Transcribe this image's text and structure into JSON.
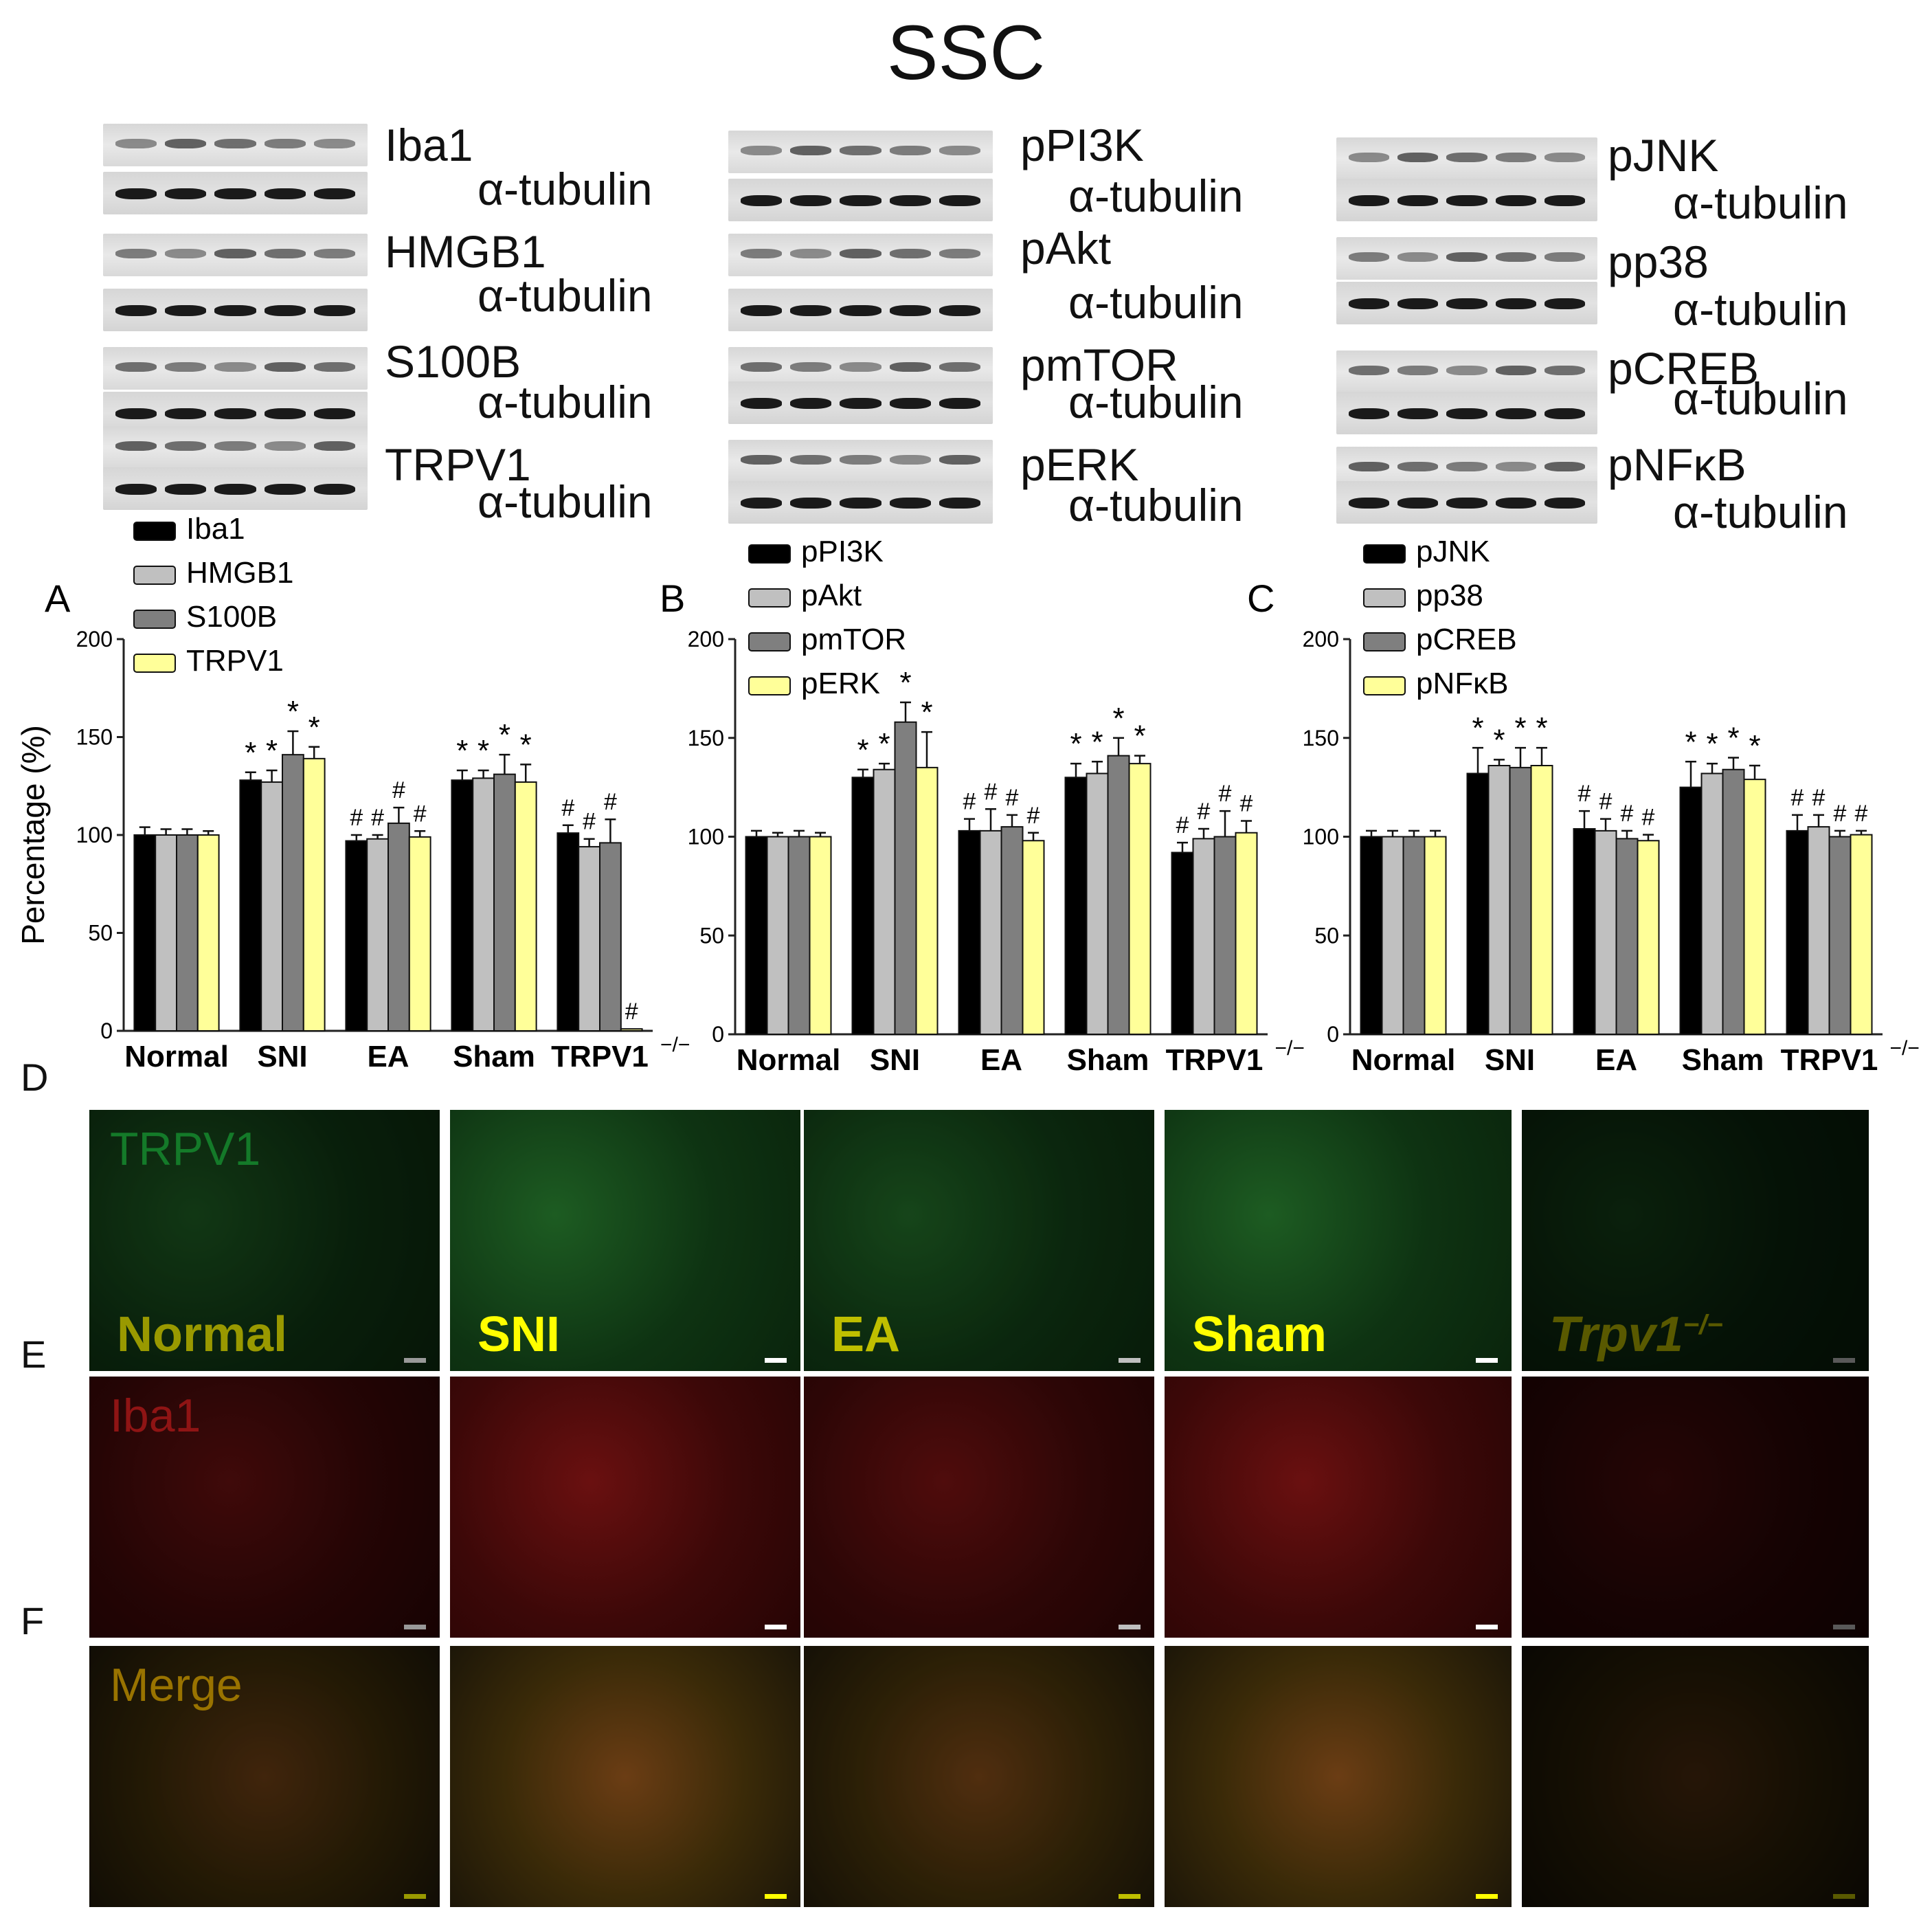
{
  "figure_title": "SSC",
  "panel_letters": {
    "A": "A",
    "B": "B",
    "C": "C",
    "D": "D",
    "E": "E",
    "F": "F"
  },
  "blots": [
    {
      "label": "Iba1",
      "loading": "α-tubulin"
    },
    {
      "label": "HMGB1",
      "loading": "α-tubulin"
    },
    {
      "label": "S100B",
      "loading": "α-tubulin"
    },
    {
      "label": "TRPV1",
      "loading": "α-tubulin"
    },
    {
      "label": "pPI3K",
      "loading": "α-tubulin"
    },
    {
      "label": "pAkt",
      "loading": "α-tubulin"
    },
    {
      "label": "pmTOR",
      "loading": "α-tubulin"
    },
    {
      "label": "pERK",
      "loading": "α-tubulin"
    },
    {
      "label": "pJNK",
      "loading": "α-tubulin"
    },
    {
      "label": "pp38",
      "loading": "α-tubulin"
    },
    {
      "label": "pCREB",
      "loading": "α-tubulin"
    },
    {
      "label": "pNFκB",
      "loading": "α-tubulin"
    }
  ],
  "colors": {
    "series1": "#000000",
    "series2": "#c0c0c0",
    "series3": "#7f7f7f",
    "series4": "#ffff99",
    "green_channel": "#22cc44",
    "red_channel": "#ee2222",
    "merge_text": "#ffc000",
    "group_text": "#ffff00"
  },
  "chart_data": [
    {
      "type": "bar",
      "panel": "A",
      "ylabel": "Percentage (%)",
      "ylim": [
        0,
        200
      ],
      "yticks": [
        0,
        50,
        100,
        150,
        200
      ],
      "categories": [
        "Normal",
        "SNI",
        "EA",
        "Sham",
        "TRPV1"
      ],
      "category_superscript": {
        "TRPV1": "−/−"
      },
      "legend_position": "top-left",
      "series": [
        {
          "name": "Iba1",
          "values": [
            100,
            128,
            97,
            128,
            101
          ],
          "errors": [
            4,
            4,
            3,
            5,
            4
          ],
          "marks": [
            "",
            "*",
            "#",
            "*",
            "#"
          ]
        },
        {
          "name": "HMGB1",
          "values": [
            100,
            127,
            98,
            129,
            94
          ],
          "errors": [
            3,
            6,
            2,
            4,
            4
          ],
          "marks": [
            "",
            "*",
            "#",
            "*",
            "#"
          ]
        },
        {
          "name": "S100B",
          "values": [
            100,
            141,
            106,
            131,
            96
          ],
          "errors": [
            3,
            12,
            8,
            10,
            12
          ],
          "marks": [
            "",
            "*",
            "#",
            "*",
            "#"
          ]
        },
        {
          "name": "TRPV1",
          "values": [
            100,
            139,
            99,
            127,
            1
          ],
          "errors": [
            2,
            6,
            3,
            9,
            0
          ],
          "marks": [
            "",
            "*",
            "#",
            "*",
            "#"
          ]
        }
      ]
    },
    {
      "type": "bar",
      "panel": "B",
      "ylabel": "",
      "ylim": [
        0,
        200
      ],
      "yticks": [
        0,
        50,
        100,
        150,
        200
      ],
      "categories": [
        "Normal",
        "SNI",
        "EA",
        "Sham",
        "TRPV1"
      ],
      "category_superscript": {
        "TRPV1": "−/−"
      },
      "legend_position": "top-left",
      "series": [
        {
          "name": "pPI3K",
          "values": [
            100,
            130,
            103,
            130,
            92
          ],
          "errors": [
            3,
            4,
            6,
            7,
            5
          ],
          "marks": [
            "",
            "*",
            "#",
            "*",
            "#"
          ]
        },
        {
          "name": "pAkt",
          "values": [
            100,
            134,
            103,
            132,
            99
          ],
          "errors": [
            2,
            3,
            11,
            6,
            5
          ],
          "marks": [
            "",
            "*",
            "#",
            "*",
            "#"
          ]
        },
        {
          "name": "pmTOR",
          "values": [
            100,
            158,
            105,
            141,
            100
          ],
          "errors": [
            3,
            10,
            6,
            9,
            13
          ],
          "marks": [
            "",
            "*",
            "#",
            "*",
            "#"
          ]
        },
        {
          "name": "pERK",
          "values": [
            100,
            135,
            98,
            137,
            102
          ],
          "errors": [
            2,
            18,
            4,
            4,
            6
          ],
          "marks": [
            "",
            "*",
            "#",
            "*",
            "#"
          ]
        }
      ]
    },
    {
      "type": "bar",
      "panel": "C",
      "ylabel": "",
      "ylim": [
        0,
        200
      ],
      "yticks": [
        0,
        50,
        100,
        150,
        200
      ],
      "categories": [
        "Normal",
        "SNI",
        "EA",
        "Sham",
        "TRPV1"
      ],
      "category_superscript": {
        "TRPV1": "−/−"
      },
      "legend_position": "top-left",
      "series": [
        {
          "name": "pJNK",
          "values": [
            100,
            132,
            104,
            125,
            103
          ],
          "errors": [
            3,
            13,
            9,
            13,
            8
          ],
          "marks": [
            "",
            "*",
            "#",
            "*",
            "#"
          ]
        },
        {
          "name": "pp38",
          "values": [
            100,
            136,
            103,
            132,
            105
          ],
          "errors": [
            3,
            3,
            6,
            5,
            6
          ],
          "marks": [
            "",
            "*",
            "#",
            "*",
            "#"
          ]
        },
        {
          "name": "pCREB",
          "values": [
            100,
            135,
            99,
            134,
            100
          ],
          "errors": [
            3,
            10,
            4,
            6,
            3
          ],
          "marks": [
            "",
            "*",
            "#",
            "*",
            "#"
          ]
        },
        {
          "name": "pNFκB",
          "values": [
            100,
            136,
            98,
            129,
            101
          ],
          "errors": [
            3,
            9,
            3,
            7,
            2
          ],
          "marks": [
            "",
            "*",
            "#",
            "*",
            "#"
          ]
        }
      ]
    }
  ],
  "micrographs": {
    "columns": [
      "Normal",
      "SNI",
      "EA",
      "Sham",
      "Trpv1"
    ],
    "last_column_superscript": "−/−",
    "rows": [
      {
        "stain": "TRPV1",
        "channel": "green"
      },
      {
        "stain": "Iba1",
        "channel": "red"
      },
      {
        "stain": "Merge",
        "channel": "merge"
      }
    ]
  }
}
